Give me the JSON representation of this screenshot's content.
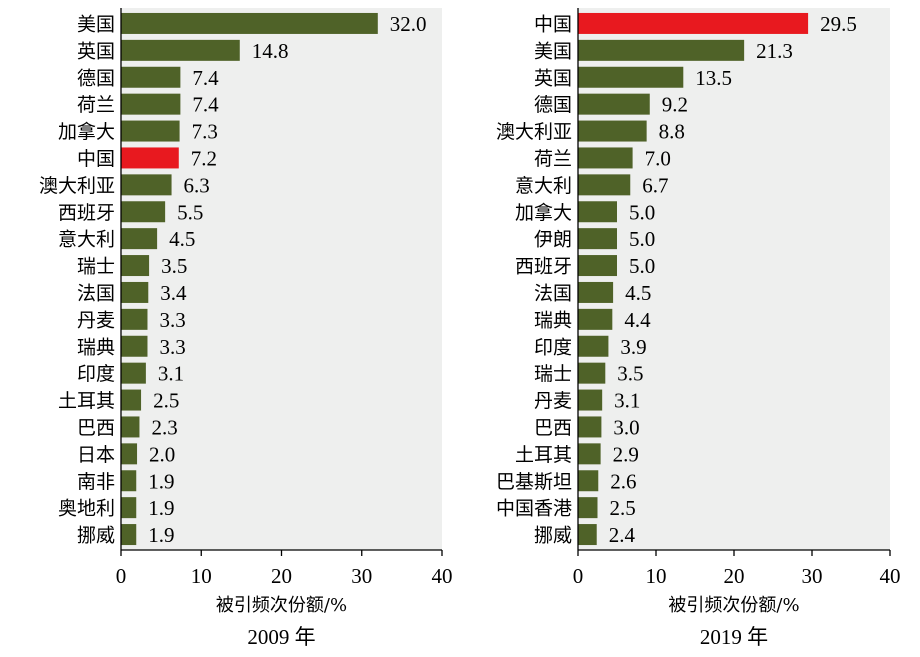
{
  "colors": {
    "bar": "#4f6228",
    "highlight": "#e8191f",
    "plot_bg": "#eeefee",
    "axis": "#000000"
  },
  "chart_data": [
    {
      "type": "bar",
      "orientation": "horizontal",
      "caption": "2009 年",
      "xlabel": "被引频次份额/%",
      "xlim": [
        0,
        40
      ],
      "xticks": [
        0,
        10,
        20,
        30,
        40
      ],
      "highlight": "中国",
      "categories": [
        "美国",
        "英国",
        "德国",
        "荷兰",
        "加拿大",
        "中国",
        "澳大利亚",
        "西班牙",
        "意大利",
        "瑞士",
        "法国",
        "丹麦",
        "瑞典",
        "印度",
        "土耳其",
        "巴西",
        "日本",
        "南非",
        "奥地利",
        "挪威"
      ],
      "values": [
        32.0,
        14.8,
        7.4,
        7.4,
        7.3,
        7.2,
        6.3,
        5.5,
        4.5,
        3.5,
        3.4,
        3.3,
        3.3,
        3.1,
        2.5,
        2.3,
        2.0,
        1.9,
        1.9,
        1.9
      ],
      "value_labels": [
        "32.0",
        "14.8",
        "7.4",
        "7.4",
        "7.3",
        "7.2",
        "6.3",
        "5.5",
        "4.5",
        "3.5",
        "3.4",
        "3.3",
        "3.3",
        "3.1",
        "2.5",
        "2.3",
        "2.0",
        "1.9",
        "1.9",
        "1.9"
      ]
    },
    {
      "type": "bar",
      "orientation": "horizontal",
      "caption": "2019 年",
      "xlabel": "被引频次份额/%",
      "xlim": [
        0,
        40
      ],
      "xticks": [
        0,
        10,
        20,
        30,
        40
      ],
      "highlight": "中国",
      "categories": [
        "中国",
        "美国",
        "英国",
        "德国",
        "澳大利亚",
        "荷兰",
        "意大利",
        "加拿大",
        "伊朗",
        "西班牙",
        "法国",
        "瑞典",
        "印度",
        "瑞士",
        "丹麦",
        "巴西",
        "土耳其",
        "巴基斯坦",
        "中国香港",
        "挪威"
      ],
      "values": [
        29.5,
        21.3,
        13.5,
        9.2,
        8.8,
        7.0,
        6.7,
        5.0,
        5.0,
        5.0,
        4.5,
        4.4,
        3.9,
        3.5,
        3.1,
        3.0,
        2.9,
        2.6,
        2.5,
        2.4
      ],
      "value_labels": [
        "29.5",
        "21.3",
        "13.5",
        "9.2",
        "8.8",
        "7.0",
        "6.7",
        "5.0",
        "5.0",
        "5.0",
        "4.5",
        "4.4",
        "3.9",
        "3.5",
        "3.1",
        "3.0",
        "2.9",
        "2.6",
        "2.5",
        "2.4"
      ]
    }
  ]
}
